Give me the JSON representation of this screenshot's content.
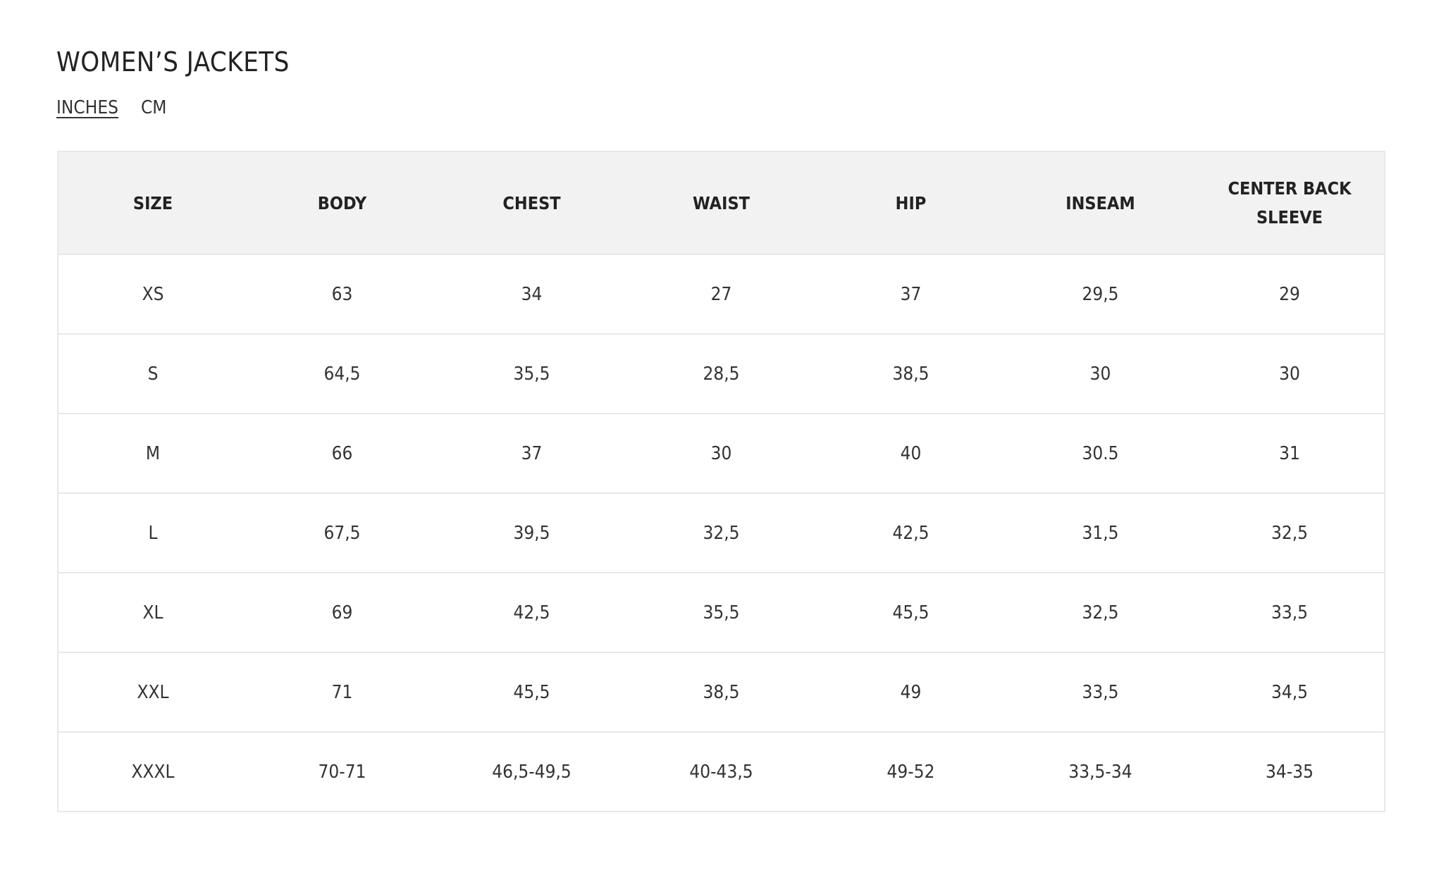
{
  "title": "WOMEN’S JACKETS",
  "unit_tabs": [
    {
      "label": "INCHES",
      "active": true
    },
    {
      "label": "CM",
      "active": false
    }
  ],
  "table": {
    "headers": [
      "SIZE",
      "BODY",
      "CHEST",
      "WAIST",
      "HIP",
      "INSEAM",
      "CENTER BACK SLEEVE"
    ],
    "rows": [
      [
        "XS",
        "63",
        "34",
        "27",
        "37",
        "29,5",
        "29"
      ],
      [
        "S",
        "64,5",
        "35,5",
        "28,5",
        "38,5",
        "30",
        "30"
      ],
      [
        "M",
        "66",
        "37",
        "30",
        "40",
        "30.5",
        "31"
      ],
      [
        "L",
        "67,5",
        "39,5",
        "32,5",
        "42,5",
        "31,5",
        "32,5"
      ],
      [
        "XL",
        "69",
        "42,5",
        "35,5",
        "45,5",
        "32,5",
        "33,5"
      ],
      [
        "XXL",
        "71",
        "45,5",
        "38,5",
        "49",
        "33,5",
        "34,5"
      ],
      [
        "XXXL",
        "70-71",
        "46,5-49,5",
        "40-43,5",
        "49-52",
        "33,5-34",
        "34-35"
      ]
    ]
  }
}
